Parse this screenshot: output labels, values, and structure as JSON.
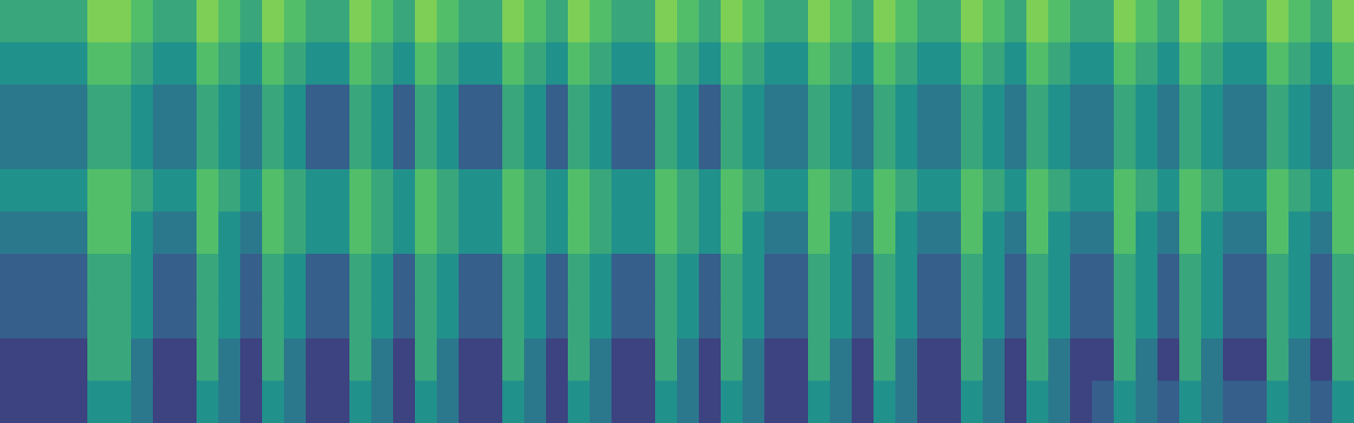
{
  "chart_data": {
    "type": "heatmap",
    "tick_labels": false,
    "zlim": [
      0,
      10
    ],
    "cells": [
      [
        6,
        6,
        6,
        6,
        8,
        8,
        7,
        6,
        6,
        8,
        7,
        6,
        8,
        7,
        6,
        6,
        8,
        7,
        6,
        8,
        7,
        6,
        6,
        8,
        7,
        6,
        8,
        7,
        6,
        6,
        8,
        7,
        6,
        8,
        7,
        6,
        6,
        8,
        7,
        6,
        8,
        7,
        6,
        6,
        8,
        7,
        6,
        8,
        7,
        6,
        6,
        8,
        7,
        6,
        8,
        7,
        6,
        6,
        8,
        7,
        6,
        8
      ],
      [
        5,
        5,
        5,
        5,
        7,
        7,
        6,
        5,
        5,
        7,
        6,
        5,
        7,
        6,
        5,
        5,
        7,
        6,
        5,
        7,
        6,
        5,
        5,
        7,
        6,
        5,
        7,
        6,
        5,
        5,
        7,
        6,
        5,
        7,
        6,
        5,
        5,
        7,
        6,
        5,
        7,
        6,
        5,
        5,
        7,
        6,
        5,
        7,
        6,
        5,
        5,
        7,
        6,
        5,
        7,
        6,
        5,
        5,
        7,
        6,
        5,
        7
      ],
      [
        4,
        4,
        4,
        4,
        6,
        6,
        5,
        4,
        4,
        6,
        5,
        4,
        6,
        5,
        3,
        3,
        6,
        5,
        3,
        6,
        5,
        3,
        3,
        6,
        5,
        3,
        6,
        5,
        3,
        3,
        6,
        5,
        3,
        6,
        5,
        4,
        4,
        6,
        5,
        4,
        6,
        5,
        4,
        4,
        6,
        5,
        4,
        6,
        5,
        4,
        4,
        6,
        5,
        4,
        6,
        5,
        4,
        4,
        6,
        5,
        4,
        6
      ],
      [
        4,
        4,
        4,
        4,
        6,
        6,
        5,
        4,
        4,
        6,
        5,
        4,
        6,
        5,
        3,
        3,
        6,
        5,
        3,
        6,
        5,
        3,
        3,
        6,
        5,
        3,
        6,
        5,
        3,
        3,
        6,
        5,
        3,
        6,
        5,
        4,
        4,
        6,
        5,
        4,
        6,
        5,
        4,
        4,
        6,
        5,
        4,
        6,
        5,
        4,
        4,
        6,
        5,
        4,
        6,
        5,
        4,
        4,
        6,
        5,
        4,
        6
      ],
      [
        5,
        5,
        5,
        5,
        7,
        7,
        6,
        5,
        5,
        7,
        6,
        5,
        7,
        6,
        5,
        5,
        7,
        6,
        5,
        7,
        6,
        5,
        5,
        7,
        6,
        5,
        7,
        6,
        5,
        5,
        7,
        6,
        5,
        7,
        6,
        5,
        5,
        7,
        6,
        5,
        7,
        6,
        5,
        5,
        7,
        6,
        5,
        7,
        6,
        5,
        5,
        7,
        6,
        5,
        7,
        6,
        5,
        5,
        7,
        6,
        5,
        7
      ],
      [
        4,
        4,
        4,
        4,
        7,
        7,
        5,
        4,
        4,
        7,
        5,
        4,
        7,
        6,
        5,
        5,
        7,
        6,
        5,
        7,
        6,
        5,
        5,
        7,
        6,
        5,
        7,
        6,
        5,
        5,
        7,
        6,
        5,
        7,
        5,
        4,
        4,
        7,
        5,
        4,
        7,
        5,
        4,
        4,
        7,
        5,
        4,
        7,
        5,
        4,
        4,
        7,
        5,
        4,
        7,
        5,
        4,
        4,
        7,
        5,
        4,
        7
      ],
      [
        3,
        3,
        3,
        3,
        6,
        6,
        5,
        3,
        3,
        6,
        5,
        3,
        6,
        5,
        3,
        3,
        6,
        5,
        3,
        6,
        5,
        3,
        3,
        6,
        5,
        3,
        6,
        5,
        3,
        3,
        6,
        5,
        3,
        6,
        5,
        3,
        3,
        6,
        5,
        3,
        6,
        5,
        3,
        3,
        6,
        5,
        3,
        6,
        5,
        3,
        3,
        6,
        5,
        3,
        6,
        5,
        3,
        3,
        6,
        5,
        3,
        6
      ],
      [
        3,
        3,
        3,
        3,
        6,
        6,
        5,
        3,
        3,
        6,
        5,
        3,
        6,
        5,
        3,
        3,
        6,
        5,
        3,
        6,
        5,
        3,
        3,
        6,
        5,
        3,
        6,
        5,
        3,
        3,
        6,
        5,
        3,
        6,
        5,
        3,
        3,
        6,
        5,
        3,
        6,
        5,
        3,
        3,
        6,
        5,
        3,
        6,
        5,
        3,
        3,
        6,
        5,
        3,
        6,
        5,
        3,
        3,
        6,
        5,
        3,
        6
      ],
      [
        2,
        2,
        2,
        2,
        6,
        6,
        4,
        2,
        2,
        6,
        4,
        2,
        6,
        4,
        2,
        2,
        6,
        4,
        2,
        6,
        4,
        2,
        2,
        6,
        4,
        2,
        6,
        4,
        2,
        2,
        6,
        4,
        2,
        6,
        4,
        2,
        2,
        6,
        4,
        2,
        6,
        4,
        2,
        2,
        6,
        4,
        2,
        6,
        4,
        2,
        2,
        6,
        4,
        2,
        6,
        4,
        2,
        2,
        6,
        4,
        2,
        6
      ],
      [
        2,
        2,
        2,
        2,
        5,
        5,
        4,
        2,
        2,
        5,
        4,
        2,
        5,
        4,
        2,
        2,
        5,
        4,
        2,
        5,
        4,
        2,
        2,
        5,
        4,
        2,
        5,
        4,
        2,
        2,
        5,
        4,
        2,
        5,
        4,
        2,
        2,
        5,
        4,
        2,
        5,
        4,
        2,
        2,
        5,
        4,
        2,
        5,
        4,
        2,
        3,
        5,
        4,
        3,
        5,
        4,
        3,
        3,
        5,
        4,
        3,
        5
      ]
    ]
  }
}
